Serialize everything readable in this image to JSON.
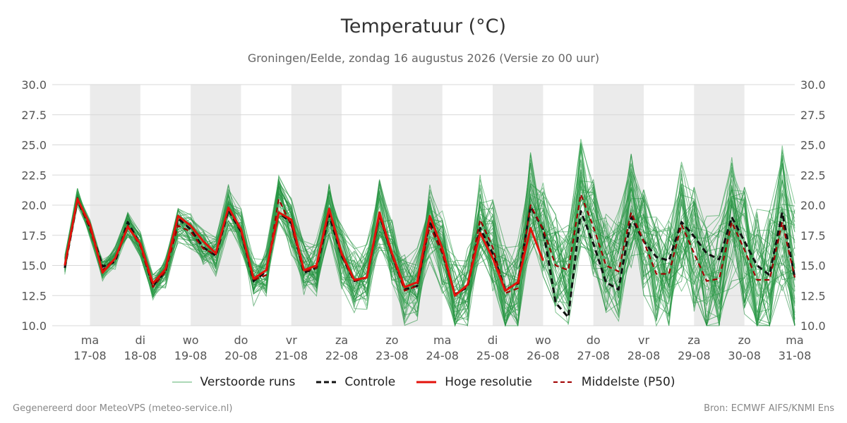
{
  "header": {
    "title": "Temperatuur (°C)",
    "subtitle": "Groningen/Eelde, zondag 16 augustus 2026 (Versie zo 00 uur)"
  },
  "footer": {
    "left": "Gegenereerd door MeteoVPS (meteo-service.nl)",
    "right": "Bron: ECMWF AIFS/KNMI Ens"
  },
  "legend": [
    {
      "label": "Verstoorde runs",
      "color": "#2e9e4a",
      "style": "thin"
    },
    {
      "label": "Controle",
      "color": "#111111",
      "style": "dashed"
    },
    {
      "label": "Hoge resolutie",
      "color": "#e3120b",
      "style": "solid"
    },
    {
      "label": "Middelste (P50)",
      "color": "#a00000",
      "style": "dashed"
    }
  ],
  "chart_data": {
    "type": "line",
    "title": "Temperatuur (°C)",
    "subtitle": "Groningen/Eelde, zondag 16 augustus 2026 (Versie zo 00 uur)",
    "ylim": [
      10.0,
      30.0
    ],
    "yticks": [
      "10.0",
      "12.5",
      "15.0",
      "17.5",
      "20.0",
      "22.5",
      "25.0",
      "27.5",
      "30.0"
    ],
    "y_axis_both_sides": true,
    "grid": true,
    "legend_position": "bottom",
    "x_range_days": [
      -0.75,
      14.0
    ],
    "x_tick_labels": [
      {
        "day": 0,
        "top": "ma",
        "bottom": "17-08"
      },
      {
        "day": 1,
        "top": "di",
        "bottom": "18-08"
      },
      {
        "day": 2,
        "top": "wo",
        "bottom": "19-08"
      },
      {
        "day": 3,
        "top": "do",
        "bottom": "20-08"
      },
      {
        "day": 4,
        "top": "vr",
        "bottom": "21-08"
      },
      {
        "day": 5,
        "top": "za",
        "bottom": "22-08"
      },
      {
        "day": 6,
        "top": "zo",
        "bottom": "23-08"
      },
      {
        "day": 7,
        "top": "ma",
        "bottom": "24-08"
      },
      {
        "day": 8,
        "top": "di",
        "bottom": "25-08"
      },
      {
        "day": 9,
        "top": "wo",
        "bottom": "26-08"
      },
      {
        "day": 10,
        "top": "do",
        "bottom": "27-08"
      },
      {
        "day": 11,
        "top": "vr",
        "bottom": "28-08"
      },
      {
        "day": 12,
        "top": "za",
        "bottom": "29-08"
      },
      {
        "day": 13,
        "top": "zo",
        "bottom": "30-08"
      },
      {
        "day": 14,
        "top": "ma",
        "bottom": "31-08"
      }
    ],
    "shaded_days": [
      0,
      2,
      4,
      6,
      8,
      10,
      12
    ],
    "ensemble_member_count": 50,
    "series": [
      {
        "name": "Hoge resolutie",
        "color": "#e3120b",
        "x": [
          -0.5,
          -0.25,
          0,
          0.25,
          0.5,
          0.75,
          1,
          1.25,
          1.5,
          1.75,
          2,
          2.25,
          2.5,
          2.75,
          3,
          3.25,
          3.5,
          3.75,
          4,
          4.25,
          4.5,
          4.75,
          5,
          5.25,
          5.5,
          5.75,
          6,
          6.25,
          6.5,
          6.75,
          7,
          7.25,
          7.5,
          7.75,
          8,
          8.25,
          8.5,
          8.75,
          9
        ],
        "values": [
          15.0,
          20.5,
          18.4,
          14.4,
          15.6,
          18.2,
          16.8,
          13.5,
          14.7,
          19.1,
          18.3,
          17.0,
          16.0,
          19.8,
          18.0,
          13.9,
          14.6,
          19.4,
          18.8,
          14.6,
          15.0,
          19.7,
          16.0,
          13.8,
          14.0,
          19.4,
          16.0,
          13.2,
          13.6,
          19.1,
          16.4,
          12.5,
          13.4,
          17.7,
          15.6,
          12.9,
          13.6,
          18.1,
          15.4
        ]
      },
      {
        "name": "Controle",
        "color": "#111111",
        "x": [
          -0.5,
          -0.25,
          0,
          0.25,
          0.5,
          0.75,
          1,
          1.25,
          1.5,
          1.75,
          2,
          2.25,
          2.5,
          2.75,
          3,
          3.25,
          3.5,
          3.75,
          4,
          4.25,
          4.5,
          4.75,
          5,
          5.25,
          5.5,
          5.75,
          6,
          6.25,
          6.5,
          6.75,
          7,
          7.25,
          7.5,
          7.75,
          8,
          8.25,
          8.5,
          8.75,
          9,
          9.25,
          9.5,
          9.75,
          10,
          10.25,
          10.5,
          10.75,
          11,
          11.25,
          11.5,
          11.75,
          12,
          12.25,
          12.5,
          12.75,
          13,
          13.25,
          13.5,
          13.75,
          14
        ],
        "values": [
          14.8,
          20.4,
          18.2,
          14.9,
          15.3,
          18.6,
          16.7,
          13.3,
          14.5,
          18.9,
          18.0,
          16.5,
          15.8,
          19.6,
          17.8,
          13.7,
          14.5,
          19.4,
          18.5,
          14.4,
          14.8,
          19.2,
          15.8,
          13.7,
          14.0,
          19.2,
          15.9,
          13.0,
          13.3,
          18.7,
          16.1,
          12.6,
          13.2,
          18.1,
          16.0,
          13.0,
          13.5,
          19.9,
          18.0,
          11.9,
          10.7,
          19.5,
          16.8,
          13.6,
          13.0,
          19.0,
          17.0,
          15.7,
          15.4,
          18.6,
          17.4,
          16.0,
          15.5,
          19.0,
          17.0,
          15.0,
          14.2,
          19.4,
          14.0
        ]
      },
      {
        "name": "Middelste (P50)",
        "color": "#a00000",
        "x": [
          -0.5,
          -0.25,
          0,
          0.25,
          0.5,
          0.75,
          1,
          1.25,
          1.5,
          1.75,
          2,
          2.25,
          2.5,
          2.75,
          3,
          3.25,
          3.5,
          3.75,
          4,
          4.25,
          4.5,
          4.75,
          5,
          5.25,
          5.5,
          5.75,
          6,
          6.25,
          6.5,
          6.75,
          7,
          7.25,
          7.5,
          7.75,
          8,
          8.25,
          8.5,
          8.75,
          9,
          9.25,
          9.5,
          9.75,
          10,
          10.25,
          10.5,
          10.75,
          11,
          11.25,
          11.5,
          11.75,
          12,
          12.25,
          12.5,
          12.75,
          13,
          13.25,
          13.5,
          13.75,
          14
        ],
        "values": [
          15.0,
          20.6,
          18.0,
          14.6,
          15.6,
          18.3,
          16.6,
          13.2,
          14.5,
          18.3,
          17.8,
          16.4,
          15.9,
          19.8,
          17.8,
          13.8,
          14.2,
          20.5,
          18.3,
          14.5,
          14.8,
          19.5,
          15.8,
          13.7,
          14.0,
          19.1,
          15.8,
          12.9,
          13.3,
          18.3,
          16.0,
          12.5,
          13.3,
          18.8,
          16.5,
          12.7,
          13.1,
          20.0,
          18.0,
          15.0,
          14.6,
          20.9,
          18.2,
          15.0,
          14.5,
          19.4,
          17.0,
          14.3,
          14.3,
          18.4,
          16.0,
          13.7,
          13.9,
          18.6,
          16.3,
          13.8,
          13.8,
          18.6,
          14.0
        ]
      }
    ]
  }
}
